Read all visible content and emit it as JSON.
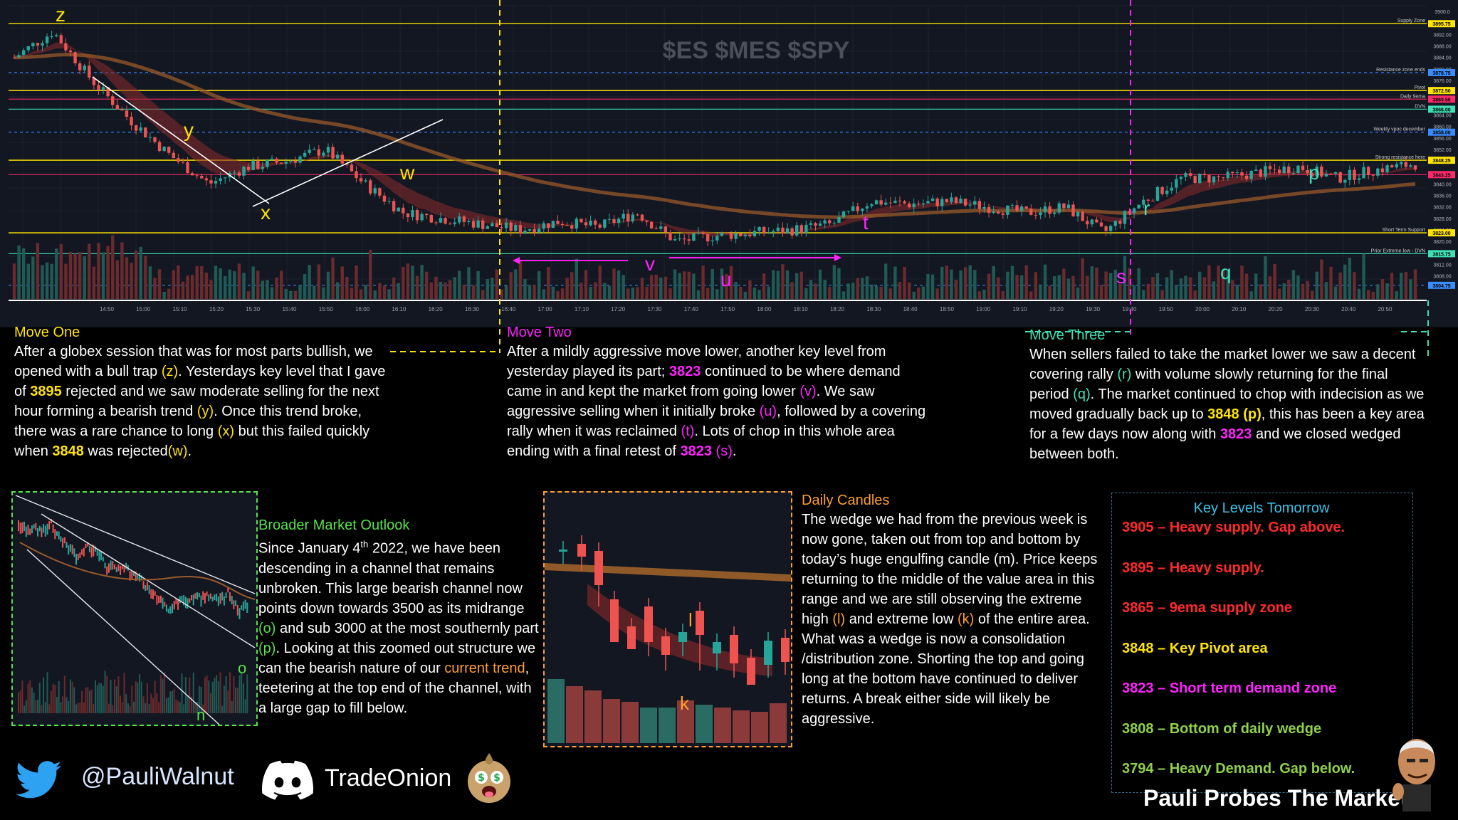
{
  "colors": {
    "yellow": "#ffe400",
    "magenta": "#ff22ff",
    "cyan": "#3ee0b5",
    "orange": "#ff9f2e",
    "green": "#57e34a",
    "red": "#ff2a2a"
  },
  "main_chart": {
    "watermark": "$ES $MES $SPY",
    "time_labels": [
      "14:50",
      "15:00",
      "15:10",
      "15:20",
      "15:30",
      "15:40",
      "15:50",
      "16:00",
      "16:10",
      "16:20",
      "16:30",
      "16:40",
      "17:00",
      "17:10",
      "17:20",
      "17:30",
      "17:40",
      "17:50",
      "18:00",
      "18:10",
      "18:20",
      "18:30",
      "18:40",
      "18:50",
      "19:00",
      "19:10",
      "19:20",
      "19:30",
      "19:40",
      "19:50",
      "20:00",
      "20:10",
      "20:20",
      "20:30",
      "20:40",
      "20:50"
    ],
    "price_ticks": [
      "3900.0",
      "3892.00",
      "3888.00",
      "3884.00",
      "3880.00",
      "3876.00",
      "3864.00",
      "3860.00",
      "3856.00",
      "3852.00",
      "3844.00",
      "3840.00",
      "3836.00",
      "3832.00",
      "3828.00",
      "3824.00",
      "3820.00",
      "3812.00",
      "3808.00"
    ],
    "levels": [
      {
        "name": "Supply Zone",
        "value": "3895.75",
        "color": "#ffe400"
      },
      {
        "name": "Resistance zone ends",
        "value": "3878.75",
        "color": "#3a8cff"
      },
      {
        "name": "Pivot",
        "value": "3872.50",
        "color": "#ffe400"
      },
      {
        "name": "Daily 9ema",
        "value": "3869.50",
        "color": "#ff2a6a"
      },
      {
        "name": "DVN",
        "value": "3866.00",
        "color": "#3ee0b5"
      },
      {
        "name": "Weekly vpoc december",
        "value": "3858.00",
        "color": "#3a8cff"
      },
      {
        "name": "Strong resistance here",
        "value": "3848.25",
        "color": "#ffe400"
      },
      {
        "name": "",
        "value": "3843.25",
        "color": "#ff2a6a"
      },
      {
        "name": "Short Term Support",
        "value": "3823.00",
        "color": "#ffe400"
      },
      {
        "name": "Prior Extreme low - DVN",
        "value": "3815.75",
        "color": "#3ee0b5"
      },
      {
        "name": "",
        "value": "3804.75",
        "color": "#3a8cff"
      }
    ],
    "last_price": "3847.75",
    "annotations": {
      "z": "z",
      "y": "y",
      "x": "x",
      "w": "w",
      "v": "v",
      "u": "u",
      "t": "t",
      "s": "s",
      "r": "r",
      "q": "q",
      "p": "p"
    }
  },
  "chart_data": {
    "type": "candlestick",
    "title": "$ES $MES $SPY",
    "xlabel": "",
    "ylabel": "",
    "ylim": [
      3800,
      3902
    ],
    "x": [
      "14:40",
      "14:50",
      "15:00",
      "15:10",
      "15:20",
      "15:30",
      "15:40",
      "15:50",
      "16:00",
      "16:10",
      "16:20",
      "16:30",
      "16:40",
      "17:00",
      "17:10",
      "17:20",
      "17:30",
      "17:40",
      "17:50",
      "18:00",
      "18:10",
      "18:20",
      "18:30",
      "18:40",
      "18:50",
      "19:00",
      "19:10",
      "19:20",
      "19:30",
      "19:40",
      "19:50",
      "20:00",
      "20:10",
      "20:20",
      "20:30",
      "20:40",
      "20:50"
    ],
    "close": [
      3884,
      3893,
      3876,
      3862,
      3850,
      3840,
      3846,
      3848,
      3852,
      3840,
      3830,
      3828,
      3826,
      3824,
      3827,
      3825,
      3830,
      3820,
      3822,
      3823,
      3824,
      3826,
      3834,
      3833,
      3834,
      3832,
      3830,
      3832,
      3823,
      3834,
      3842,
      3842,
      3844,
      3846,
      3842,
      3845,
      3847
    ],
    "series": [
      {
        "name": "price",
        "values": [
          3884,
          3893,
          3876,
          3862,
          3850,
          3840,
          3846,
          3848,
          3852,
          3840,
          3830,
          3828,
          3826,
          3824,
          3827,
          3825,
          3830,
          3820,
          3822,
          3823,
          3824,
          3826,
          3834,
          3833,
          3834,
          3832,
          3830,
          3832,
          3823,
          3834,
          3842,
          3842,
          3844,
          3846,
          3842,
          3845,
          3847
        ]
      }
    ]
  },
  "move_one": {
    "title": "Move One",
    "p1": "After a globex session that was for most parts bullish, we opened with a bull trap ",
    "z": "(z)",
    "p2": ".  Yesterdays key level that I gave of ",
    "lv1": "3895",
    "p3": " rejected and we saw moderate selling for the next hour forming a bearish trend ",
    "y": "(y)",
    "p4": ". Once this trend broke, there was a rare chance to long ",
    "x": "(x)",
    "p5": " but this failed quickly when ",
    "lv2": "3848",
    "p6": " was rejected",
    "w": "(w)",
    "p7": "."
  },
  "move_two": {
    "title": "Move Two",
    "p1": "After a mildly aggressive move lower, another key level from yesterday played its part; ",
    "lv1": "3823",
    "p2": " continued to be where demand came in and kept the market from going lower ",
    "v": "(v)",
    "p3": ". We saw aggressive selling when it initially broke ",
    "u": "(u)",
    "p4": ", followed by a covering rally when it was reclaimed ",
    "t": "(t)",
    "p5": ". Lots of chop in this whole area ending with a final retest of ",
    "lv2": "3823",
    "s": "(s)",
    "p6": "."
  },
  "move_three": {
    "title": "Move Three",
    "p1": "When sellers failed to take the market lower we saw a decent covering rally ",
    "r": "(r)",
    "p2": " with volume slowly returning for the final period ",
    "q": "(q)",
    "p3": ". The market continued to chop with indecision as we moved gradually back up to ",
    "lv1": "3848 (p)",
    "p4": ", this has been a key area for a few days now along with ",
    "lv2": "3823",
    "p5": " and we closed wedged between both."
  },
  "broader": {
    "title": "Broader Market Outlook",
    "p1": "Since January 4",
    "sup": "th",
    "p2": " 2022, we have been descending in a channel that remains unbroken. This large bearish channel now points down towards 3500 as its midrange ",
    "o": "(o)",
    "p3": " and sub 3000 at the most southernly part ",
    "p": "(p)",
    "p4": ". Looking at this zoomed out structure we can the bearish nature of our ",
    "trend": "current trend",
    "p5": ", teetering at the top end of the channel, with a large gap to fill below.",
    "chart_labels": {
      "o": "o",
      "n": "n"
    }
  },
  "daily": {
    "title": "Daily Candles",
    "p1": "The wedge we had from the previous week is now gone, taken out from top and bottom by today’s huge engulfing candle (m). Price keeps returning to the middle of the value area in this range and we are still observing the extreme high ",
    "l": "(l)",
    "p2": " and extreme low ",
    "k": "(k)",
    "p3": " of the entire area. What was a wedge is now a consolidation /distribution zone. Shorting the top and going long at the bottom have continued to deliver returns. A break either side will likely be aggressive.",
    "chart_labels": {
      "l": "l",
      "k": "k"
    }
  },
  "key_levels": {
    "title": "Key Levels Tomorrow",
    "items": [
      {
        "text": "3905 – Heavy supply. Gap above.",
        "color": "#ff2a2a"
      },
      {
        "text": "3895 – Heavy supply.",
        "color": "#ff2a2a"
      },
      {
        "text": "3865 – 9ema supply zone",
        "color": "#ff2a2a"
      },
      {
        "text": "3848 – Key Pivot area",
        "color": "#ffe400"
      },
      {
        "text": "3823 – Short term demand zone",
        "color": "#ff22ff"
      },
      {
        "text": "3808 – Bottom of daily wedge",
        "color": "#8fd14a"
      },
      {
        "text": "3794 – Heavy Demand. Gap below.",
        "color": "#8fd14a"
      }
    ]
  },
  "footer": {
    "twitter": "@PauliWalnut",
    "discord": "TradeOnion",
    "brand": "Pauli Probes The Market"
  }
}
